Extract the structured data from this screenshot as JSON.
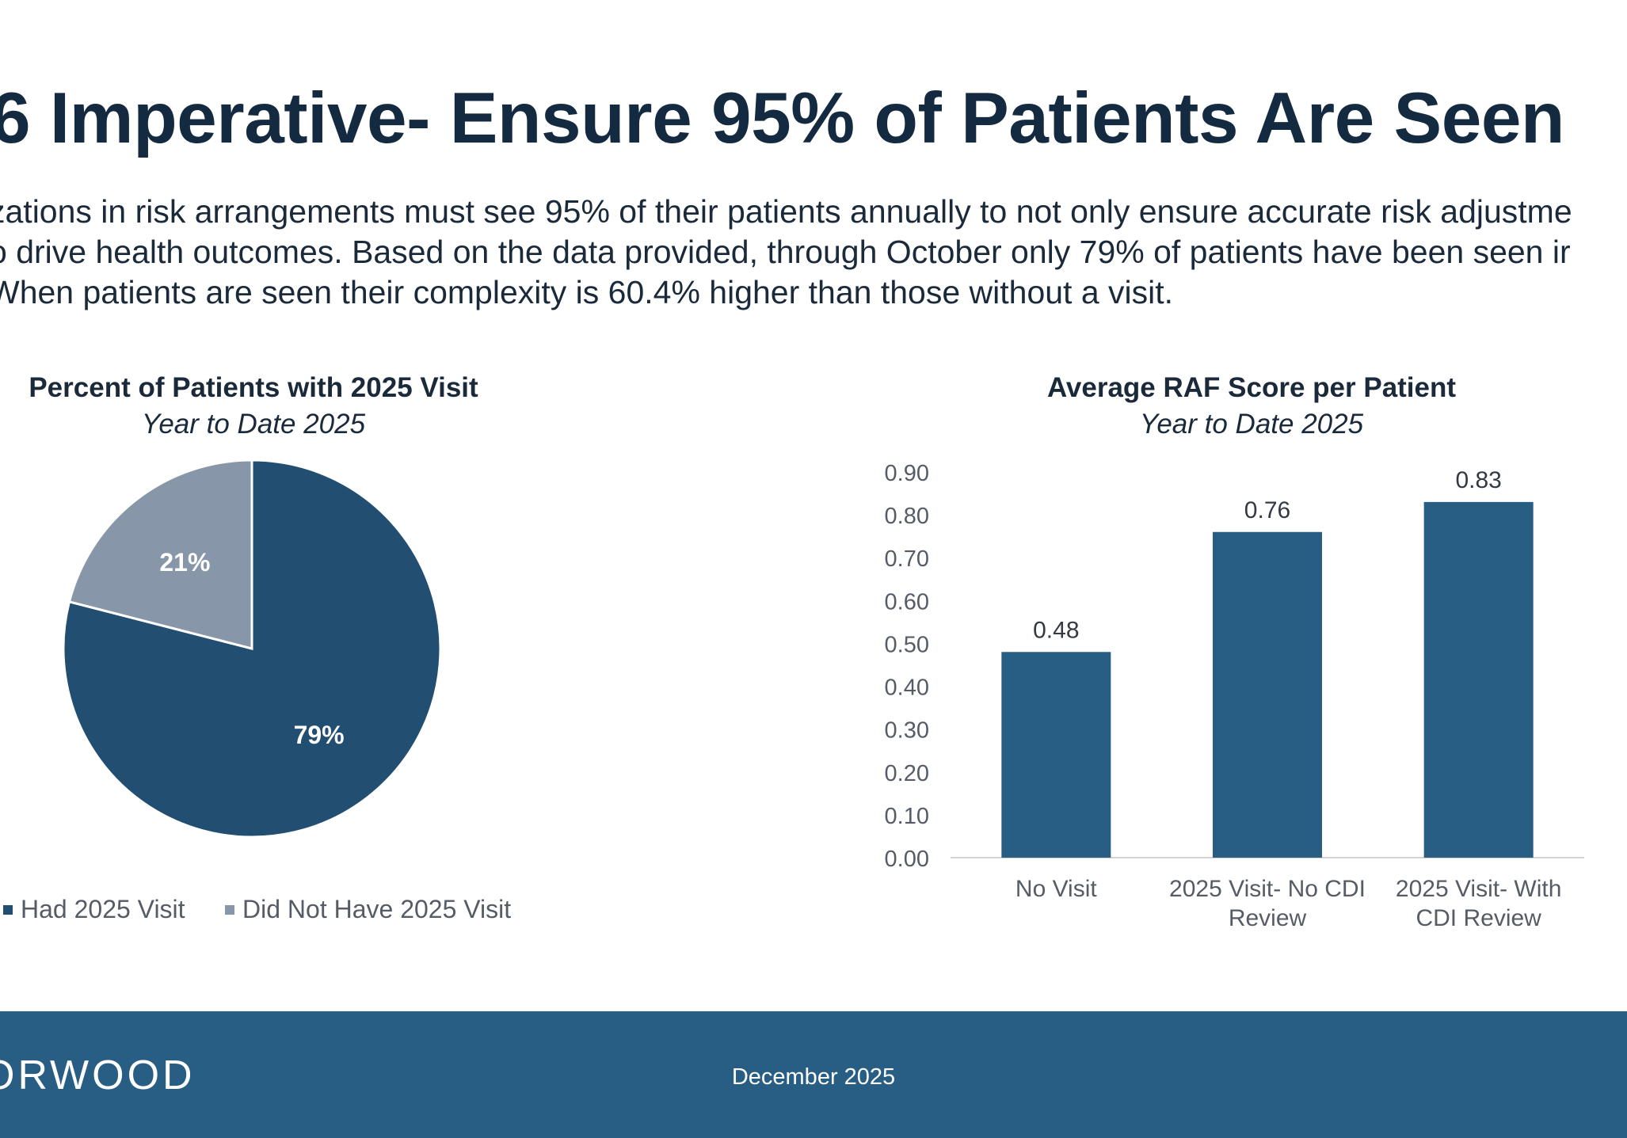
{
  "page": {
    "title": "6 Imperative- Ensure 95% of Patients Are Seen",
    "body_lines": [
      "zations in risk arrangements must see 95% of their patients annually to not only ensure accurate risk adjustme",
      "o drive health outcomes. Based on the data provided, through October only 79% of patients have been seen ir",
      "When patients are seen their complexity is 60.4% higher than those without a visit."
    ]
  },
  "footer": {
    "logo_text": "ORWOOD",
    "date": "December 2025",
    "color": "#285d84"
  },
  "chart_data": [
    {
      "type": "pie",
      "title": "Percent of Patients with 2025 Visit",
      "subtitle": "Year to Date 2025",
      "slices": [
        {
          "label": "Had 2025 Visit",
          "value": 79,
          "data_label": "79%",
          "color": "#224f71"
        },
        {
          "label": "Did Not Have 2025 Visit",
          "value": 21,
          "data_label": "21%",
          "color": "#8796a8"
        }
      ],
      "legend_position": "bottom"
    },
    {
      "type": "bar",
      "title": "Average RAF Score per Patient",
      "subtitle": "Year to Date 2025",
      "categories": [
        "No Visit",
        "2025 Visit- No CDI Review",
        "2025 Visit- With CDI Review"
      ],
      "category_lines": [
        [
          "No Visit"
        ],
        [
          "2025 Visit- No CDI",
          "Review"
        ],
        [
          "2025 Visit- With",
          "CDI Review"
        ]
      ],
      "values": [
        0.48,
        0.76,
        0.83
      ],
      "data_labels": [
        "0.48",
        "0.76",
        "0.83"
      ],
      "ylim": [
        0,
        0.9
      ],
      "yticks": [
        "0.00",
        "0.10",
        "0.20",
        "0.30",
        "0.40",
        "0.50",
        "0.60",
        "0.70",
        "0.80",
        "0.90"
      ],
      "bar_color": "#285d84",
      "grid": false,
      "legend": false
    }
  ]
}
